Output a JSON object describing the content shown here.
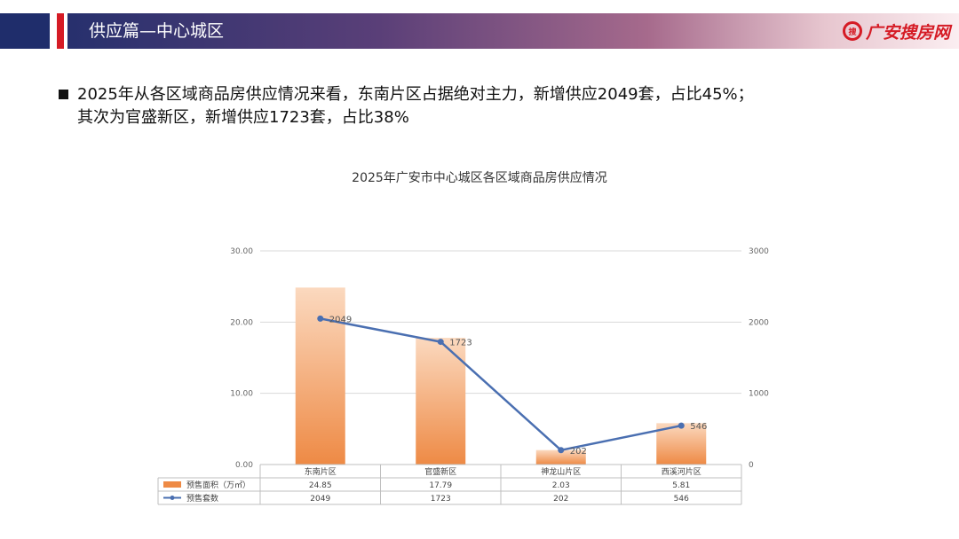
{
  "header": {
    "title": "供应篇—中心城区",
    "logo_text": "广安搜房网",
    "logo_mark": "搜房"
  },
  "bullet": {
    "line1": "2025年从各区域商品房供应情况来看，东南片区占据绝对主力，新增供应2049套，占比45%；",
    "line2": "其次为官盛新区，新增供应1723套，占比38%"
  },
  "colors": {
    "bar": "#ee8a45",
    "line": "#4a6fb1",
    "header_red": "#d51b25",
    "header_navy": "#1f2d6b"
  },
  "chart_data": {
    "type": "bar",
    "title": "2025年广安市中心城区各区域商品房供应情况",
    "categories": [
      "东南片区",
      "官盛新区",
      "神龙山片区",
      "西溪河片区"
    ],
    "series": [
      {
        "name": "预售面积（万㎡）",
        "type": "bar",
        "axis": "left",
        "values": [
          24.85,
          17.79,
          2.03,
          5.81
        ],
        "table_values": [
          "24.85",
          "17.79",
          "2.03",
          "5.81"
        ]
      },
      {
        "name": "预售套数",
        "type": "line",
        "axis": "right",
        "values": [
          2049,
          1723,
          202,
          546
        ],
        "table_values": [
          "2049",
          "1723",
          "202",
          "546"
        ],
        "data_labels": [
          "2049",
          "1723",
          "202",
          "546"
        ]
      }
    ],
    "y_left": {
      "range": [
        0,
        30
      ],
      "ticks": [
        "0.00",
        "10.00",
        "20.00",
        "30.00"
      ],
      "tick_values": [
        0,
        10,
        20,
        30
      ]
    },
    "y_right": {
      "range": [
        0,
        3000
      ],
      "ticks": [
        "0",
        "1000",
        "2000",
        "3000"
      ],
      "tick_values": [
        0,
        1000,
        2000,
        3000
      ]
    },
    "grid": true,
    "legend_placement": "data table below plot"
  }
}
